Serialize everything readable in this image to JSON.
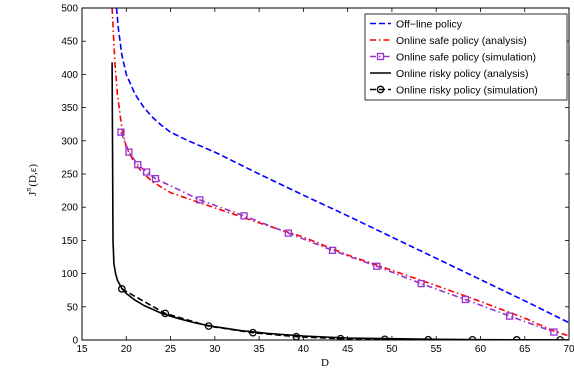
{
  "chart_data": {
    "type": "line",
    "xlabel": "D",
    "ylabel": "J",
    "ylabel_sup": "π",
    "ylabel_args": "(D,ε)",
    "xlim": [
      15,
      70
    ],
    "ylim": [
      0,
      500
    ],
    "xticks": [
      15,
      20,
      25,
      30,
      35,
      40,
      45,
      50,
      55,
      60,
      65,
      70
    ],
    "yticks": [
      0,
      50,
      100,
      150,
      200,
      250,
      300,
      350,
      400,
      450,
      500
    ],
    "grid": false,
    "legend_position": "top-right",
    "series": [
      {
        "name": "Off−line policy",
        "color": "#0000ff",
        "style": "dashed",
        "marker": "none",
        "x": [
          18.9,
          19.1,
          19.5,
          20,
          21,
          22,
          23,
          24,
          25,
          27,
          30,
          35,
          40,
          45,
          50,
          55,
          60,
          65,
          70
        ],
        "y": [
          500,
          470,
          430,
          400,
          370,
          350,
          335,
          323,
          313,
          300,
          283,
          250,
          218,
          187,
          155,
          123,
          91,
          59,
          26
        ]
      },
      {
        "name": "Online safe policy (analysis)",
        "color": "#ff0000",
        "style": "dashdot",
        "marker": "none",
        "x": [
          18.4,
          18.7,
          19,
          19.5,
          20,
          21,
          22,
          23,
          25,
          28,
          32,
          36,
          40,
          45,
          50,
          55,
          60,
          65,
          68,
          70
        ],
        "y": [
          500,
          420,
          370,
          320,
          290,
          265,
          250,
          238,
          222,
          208,
          190,
          172,
          155,
          128,
          105,
          82,
          58,
          33,
          15,
          6
        ]
      },
      {
        "name": "Online safe policy (simulation)",
        "color": "#9933cc",
        "style": "dashdot",
        "marker": "square",
        "x": [
          19.4,
          20.3,
          21.3,
          22.3,
          23.3,
          28.3,
          33.3,
          38.3,
          43.3,
          48.3,
          53.3,
          58.3,
          63.3,
          68.3
        ],
        "y": [
          313,
          283,
          264,
          253,
          243,
          211,
          187,
          161,
          135,
          111,
          85,
          61,
          36,
          12
        ]
      },
      {
        "name": "Online risky policy (analysis)",
        "color": "#000000",
        "style": "solid",
        "marker": "none",
        "x": [
          18.4,
          18.45,
          18.5,
          18.6,
          18.8,
          19,
          19.5,
          20,
          21,
          22,
          24,
          26,
          28,
          30,
          33,
          36,
          40,
          45,
          50,
          55,
          60,
          65,
          70
        ],
        "y": [
          418,
          300,
          150,
          115,
          100,
          90,
          78,
          70,
          60,
          52,
          40,
          32,
          25,
          20,
          14,
          10,
          6,
          3,
          2,
          1,
          0.5,
          0.3,
          0.2
        ]
      },
      {
        "name": "Online risky policy (simulation)",
        "color": "#000000",
        "style": "dashed",
        "marker": "circle",
        "x": [
          19.5,
          24.4,
          29.3,
          34.3,
          39.2,
          44.2,
          49.2,
          54.1,
          59.1,
          64.1,
          69.0
        ],
        "y": [
          77,
          40,
          21,
          11,
          5,
          2,
          1,
          0.5,
          0.3,
          0.2,
          0.1
        ]
      }
    ]
  }
}
